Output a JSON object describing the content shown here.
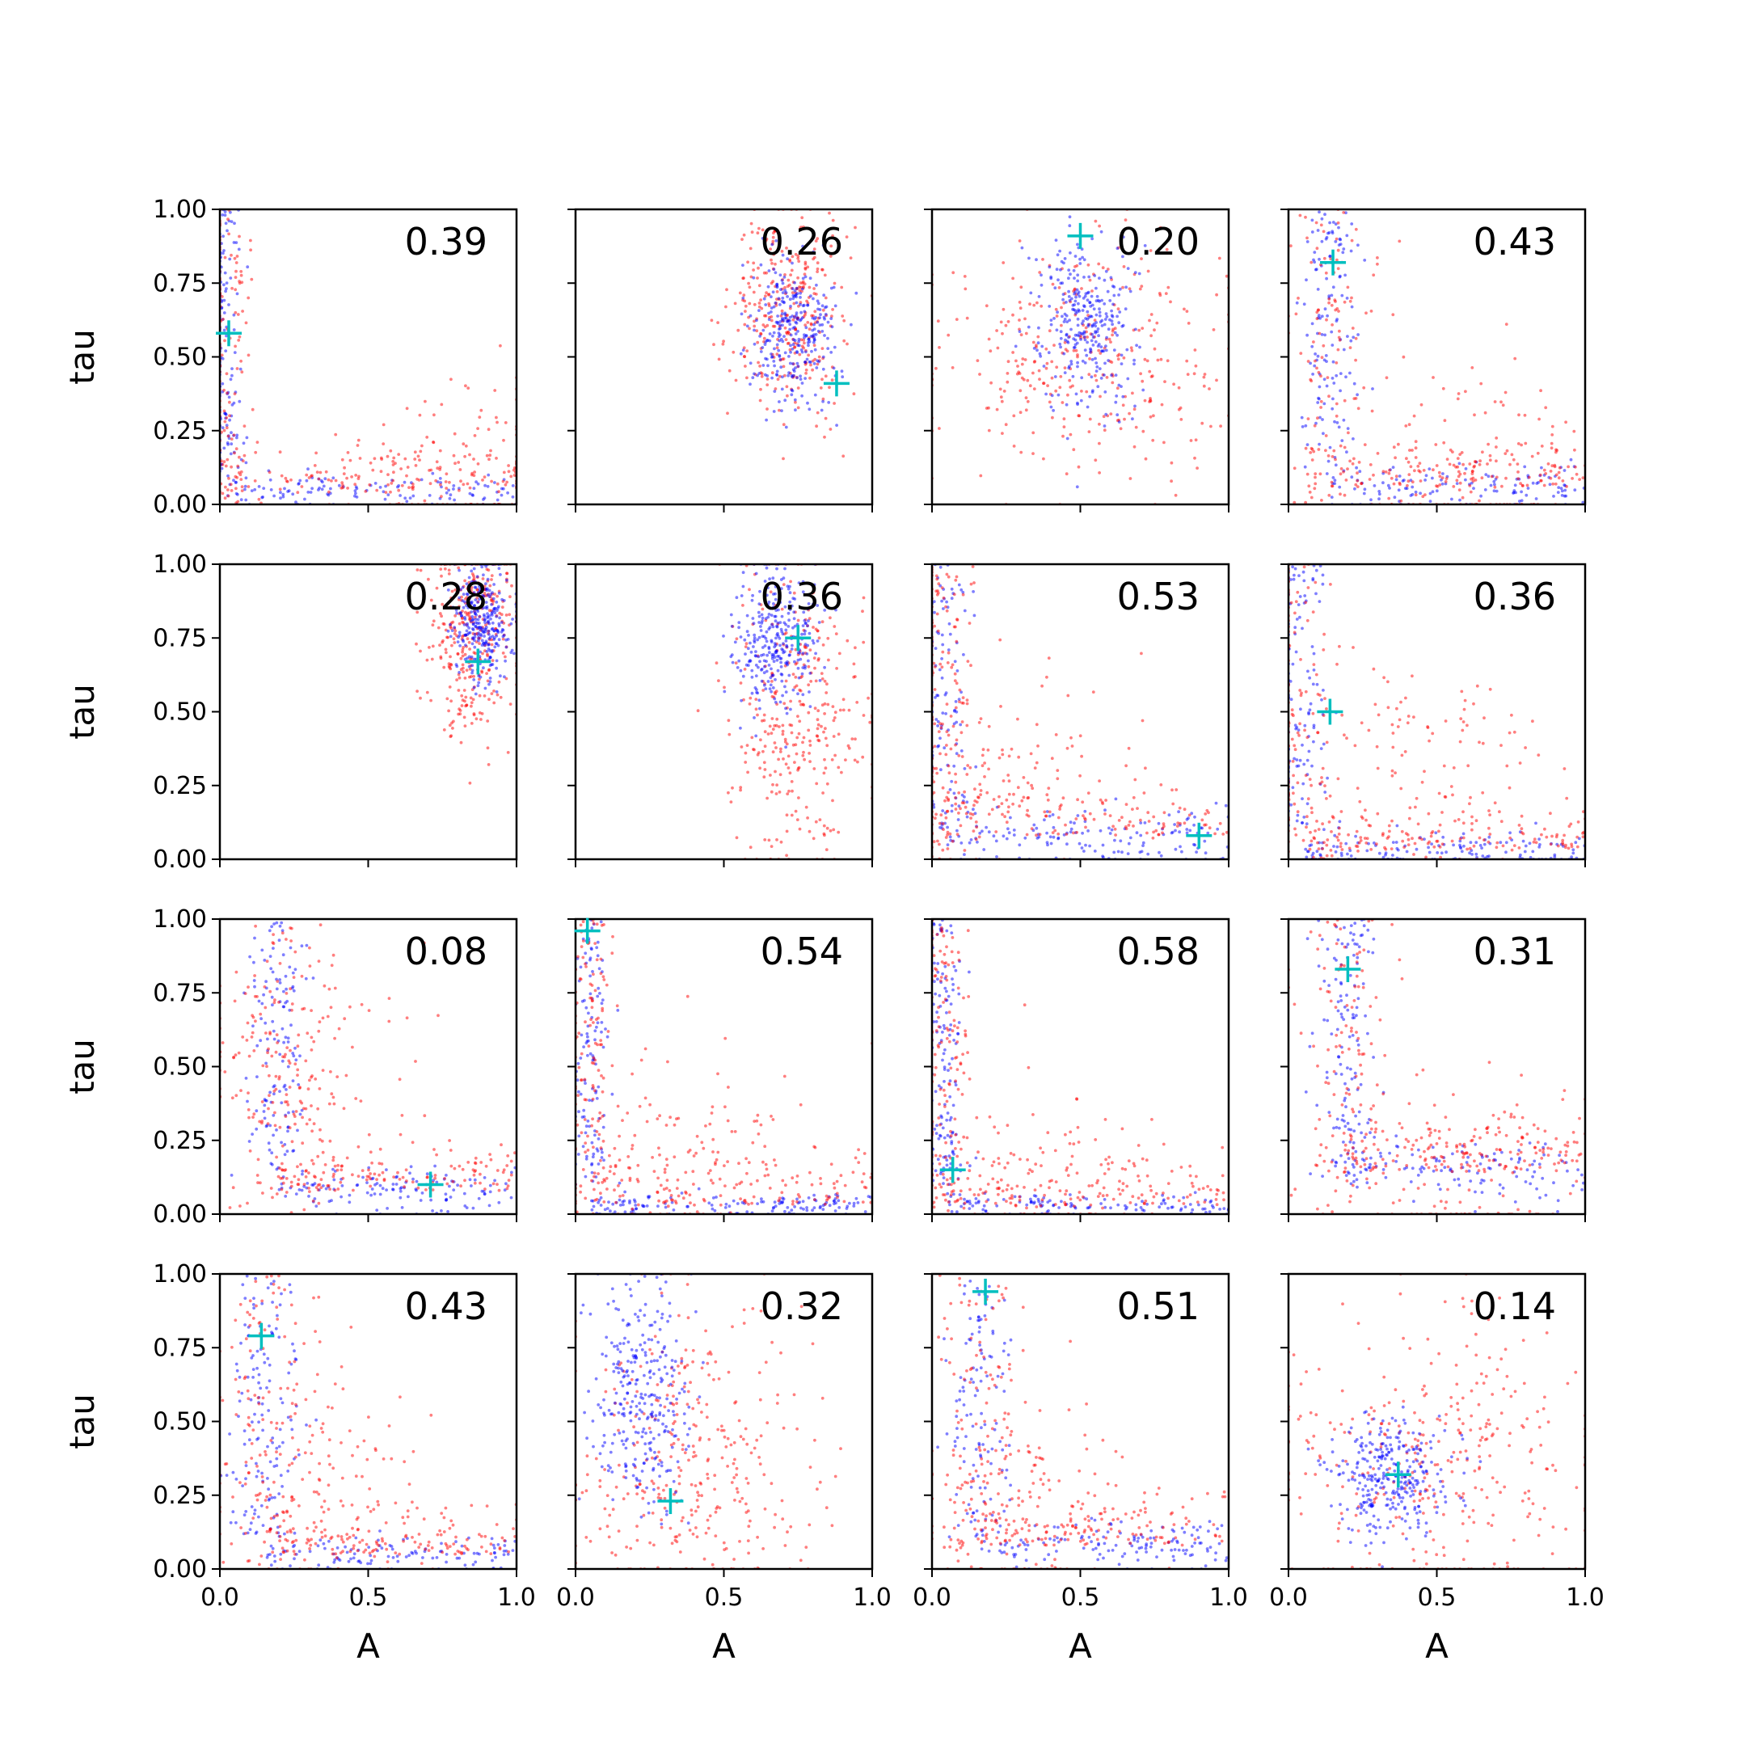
{
  "chart_data": {
    "type": "scatter",
    "layout": "4x4 grid of scatter panels",
    "xlabel": "A",
    "ylabel": "tau",
    "xlim": [
      0,
      1
    ],
    "ylim": [
      0,
      1
    ],
    "x_ticks": [
      "0.0",
      "0.5",
      "1.0"
    ],
    "y_ticks": [
      "0.00",
      "0.25",
      "0.50",
      "0.75",
      "1.00"
    ],
    "grid": false,
    "legend": "none",
    "colors": {
      "series_red": "#ff0000",
      "series_blue": "#0000ff",
      "marker": "#00bfbf"
    },
    "marker_symbol": "+",
    "panels": [
      {
        "row": 0,
        "col": 0,
        "annotation": "0.39",
        "marker": [
          0.03,
          0.58
        ],
        "shape": "L",
        "blue": {
          "v": 0.02,
          "h": 0.04,
          "wv": 0.03,
          "wh": 0.03
        },
        "red": {
          "cx": 0.85,
          "cy": 0.06
        }
      },
      {
        "row": 0,
        "col": 1,
        "annotation": "0.26",
        "marker": [
          0.88,
          0.41
        ],
        "shape": "blob",
        "blue": {
          "cx": 0.73,
          "cy": 0.6,
          "sx": 0.07,
          "sy": 0.13
        },
        "red": {
          "cx": 0.72,
          "cy": 0.65,
          "sx": 0.09,
          "sy": 0.17
        }
      },
      {
        "row": 0,
        "col": 2,
        "annotation": "0.20",
        "marker": [
          0.5,
          0.91
        ],
        "shape": "blob",
        "blue": {
          "cx": 0.52,
          "cy": 0.62,
          "sx": 0.08,
          "sy": 0.14
        },
        "red": {
          "cx": 0.5,
          "cy": 0.5,
          "sx": 0.25,
          "sy": 0.22
        }
      },
      {
        "row": 0,
        "col": 3,
        "annotation": "0.43",
        "marker": [
          0.15,
          0.82
        ],
        "shape": "L",
        "blue": {
          "v": 0.14,
          "h": 0.06,
          "wv": 0.05,
          "wh": 0.04
        },
        "red": {
          "cx": 0.6,
          "cy": 0.1
        }
      },
      {
        "row": 1,
        "col": 0,
        "annotation": "0.28",
        "marker": [
          0.87,
          0.67
        ],
        "shape": "blob",
        "blue": {
          "cx": 0.88,
          "cy": 0.8,
          "sx": 0.05,
          "sy": 0.1
        },
        "red": {
          "cx": 0.85,
          "cy": 0.75,
          "sx": 0.07,
          "sy": 0.16
        }
      },
      {
        "row": 1,
        "col": 1,
        "annotation": "0.36",
        "marker": [
          0.75,
          0.75
        ],
        "shape": "blob",
        "blue": {
          "cx": 0.67,
          "cy": 0.75,
          "sx": 0.07,
          "sy": 0.12
        },
        "red": {
          "cx": 0.75,
          "cy": 0.5,
          "sx": 0.12,
          "sy": 0.25
        }
      },
      {
        "row": 1,
        "col": 2,
        "annotation": "0.53",
        "marker": [
          0.9,
          0.08
        ],
        "shape": "L",
        "blue": {
          "v": 0.05,
          "h": 0.08,
          "wv": 0.04,
          "wh": 0.05
        },
        "red": {
          "cx": 0.3,
          "cy": 0.3
        }
      },
      {
        "row": 1,
        "col": 3,
        "annotation": "0.36",
        "marker": [
          0.14,
          0.5
        ],
        "shape": "L",
        "blue": {
          "v": 0.05,
          "h": 0.03,
          "wv": 0.05,
          "wh": 0.03
        },
        "red": {
          "cx": 0.45,
          "cy": 0.35
        }
      },
      {
        "row": 2,
        "col": 0,
        "annotation": "0.08",
        "marker": [
          0.71,
          0.1
        ],
        "shape": "L",
        "blue": {
          "v": 0.2,
          "h": 0.08,
          "wv": 0.05,
          "wh": 0.04
        },
        "red": {
          "cx": 0.25,
          "cy": 0.55
        }
      },
      {
        "row": 2,
        "col": 1,
        "annotation": "0.54",
        "marker": [
          0.04,
          0.96
        ],
        "shape": "L",
        "blue": {
          "v": 0.05,
          "h": 0.03,
          "wv": 0.03,
          "wh": 0.02
        },
        "red": {
          "cx": 0.35,
          "cy": 0.2
        }
      },
      {
        "row": 2,
        "col": 2,
        "annotation": "0.58",
        "marker": [
          0.07,
          0.15
        ],
        "shape": "L",
        "blue": {
          "v": 0.04,
          "h": 0.03,
          "wv": 0.03,
          "wh": 0.02
        },
        "red": {
          "cx": 0.4,
          "cy": 0.15
        }
      },
      {
        "row": 2,
        "col": 3,
        "annotation": "0.31",
        "marker": [
          0.2,
          0.83
        ],
        "shape": "L",
        "blue": {
          "v": 0.2,
          "h": 0.15,
          "wv": 0.05,
          "wh": 0.05
        },
        "red": {
          "cx": 0.6,
          "cy": 0.15
        }
      },
      {
        "row": 3,
        "col": 0,
        "annotation": "0.43",
        "marker": [
          0.14,
          0.79
        ],
        "shape": "L",
        "blue": {
          "v": 0.15,
          "h": 0.05,
          "wv": 0.06,
          "wh": 0.03
        },
        "red": {
          "cx": 0.4,
          "cy": 0.25
        }
      },
      {
        "row": 3,
        "col": 1,
        "annotation": "0.32",
        "marker": [
          0.32,
          0.23
        ],
        "shape": "blob",
        "blue": {
          "cx": 0.22,
          "cy": 0.6,
          "sx": 0.08,
          "sy": 0.2
        },
        "red": {
          "cx": 0.4,
          "cy": 0.35,
          "sx": 0.22,
          "sy": 0.25
        }
      },
      {
        "row": 3,
        "col": 2,
        "annotation": "0.51",
        "marker": [
          0.18,
          0.94
        ],
        "shape": "L",
        "blue": {
          "v": 0.16,
          "h": 0.08,
          "wv": 0.05,
          "wh": 0.04
        },
        "red": {
          "cx": 0.3,
          "cy": 0.2
        }
      },
      {
        "row": 3,
        "col": 3,
        "annotation": "0.14",
        "marker": [
          0.37,
          0.32
        ],
        "shape": "blob",
        "blue": {
          "cx": 0.35,
          "cy": 0.3,
          "sx": 0.1,
          "sy": 0.1
        },
        "red": {
          "cx": 0.5,
          "cy": 0.35,
          "sx": 0.28,
          "sy": 0.25
        }
      }
    ]
  }
}
